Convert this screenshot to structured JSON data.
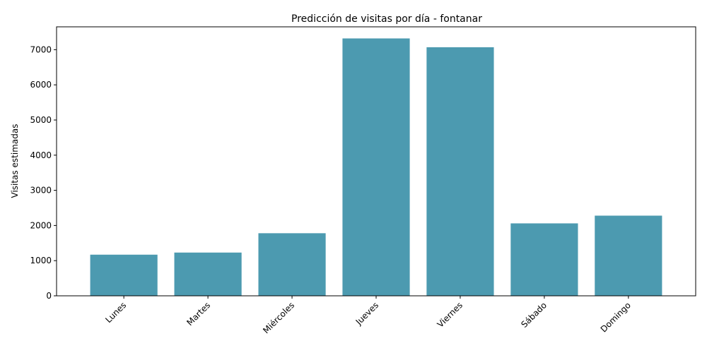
{
  "chart_data": {
    "type": "bar",
    "title": "Predicción de visitas por día - fontanar",
    "xlabel": "",
    "ylabel": "Visitas estimadas",
    "categories": [
      "Lunes",
      "Martes",
      "Miércoles",
      "Jueves",
      "Viernes",
      "Sábado",
      "Domingo"
    ],
    "values": [
      1170,
      1230,
      1780,
      7320,
      7070,
      2060,
      2280
    ],
    "ylim": [
      0,
      7650
    ],
    "yticks": [
      0,
      1000,
      2000,
      3000,
      4000,
      5000,
      6000,
      7000
    ],
    "bar_color": "#4c9ab0",
    "grid": false,
    "legend": "none"
  }
}
